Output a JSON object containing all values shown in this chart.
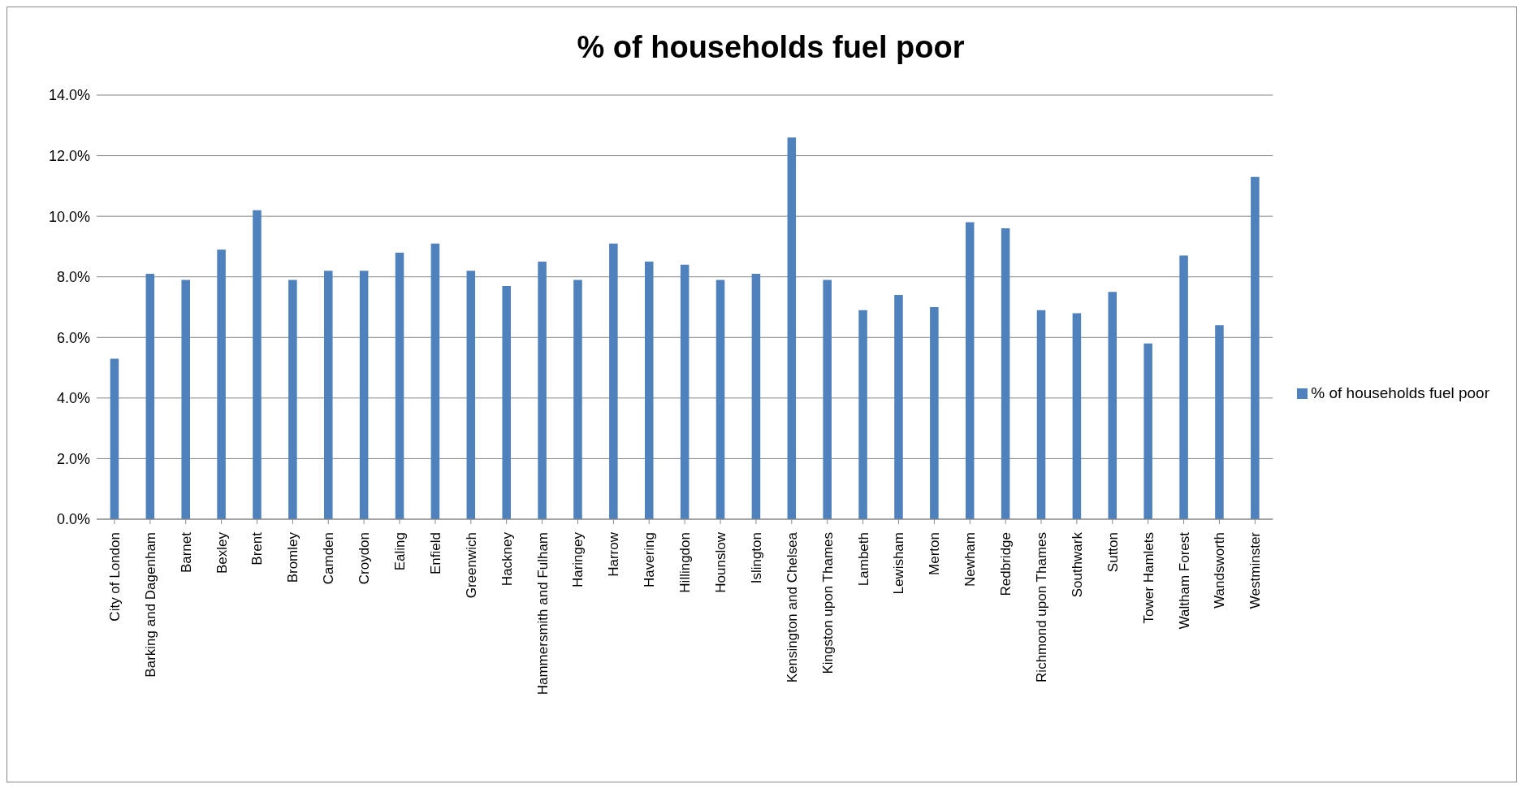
{
  "chart_data": {
    "type": "bar",
    "title": "% of households fuel poor",
    "categories": [
      "City of London",
      "Barking and Dagenham",
      "Barnet",
      "Bexley",
      "Brent",
      "Bromley",
      "Camden",
      "Croydon",
      "Ealing",
      "Enfield",
      "Greenwich",
      "Hackney",
      "Hammersmith and Fulham",
      "Haringey",
      "Harrow",
      "Havering",
      "Hillingdon",
      "Hounslow",
      "Islington",
      "Kensington and Chelsea",
      "Kingston upon Thames",
      "Lambeth",
      "Lewisham",
      "Merton",
      "Newham",
      "Redbridge",
      "Richmond upon Thames",
      "Southwark",
      "Sutton",
      "Tower Hamlets",
      "Waltham Forest",
      "Wandsworth",
      "Westminster"
    ],
    "series": [
      {
        "name": "% of households fuel poor",
        "color": "#4f81bd",
        "values": [
          5.3,
          8.1,
          7.9,
          8.9,
          10.2,
          7.9,
          8.2,
          8.2,
          8.8,
          9.1,
          8.2,
          7.7,
          8.5,
          7.9,
          9.1,
          8.5,
          8.4,
          7.9,
          8.1,
          12.6,
          7.9,
          6.9,
          7.4,
          7.0,
          9.8,
          9.6,
          6.9,
          6.8,
          7.5,
          5.8,
          8.7,
          6.4,
          11.3
        ]
      }
    ],
    "ylim": [
      0,
      14
    ],
    "yticks": [
      {
        "value": 0,
        "label": "0.0%"
      },
      {
        "value": 2,
        "label": "2.0%"
      },
      {
        "value": 4,
        "label": "4.0%"
      },
      {
        "value": 6,
        "label": "6.0%"
      },
      {
        "value": 8,
        "label": "8.0%"
      },
      {
        "value": 10,
        "label": "10.0%"
      },
      {
        "value": 12,
        "label": "12.0%"
      },
      {
        "value": 14,
        "label": "14.0%"
      }
    ],
    "grid": "y",
    "legend": "right"
  }
}
